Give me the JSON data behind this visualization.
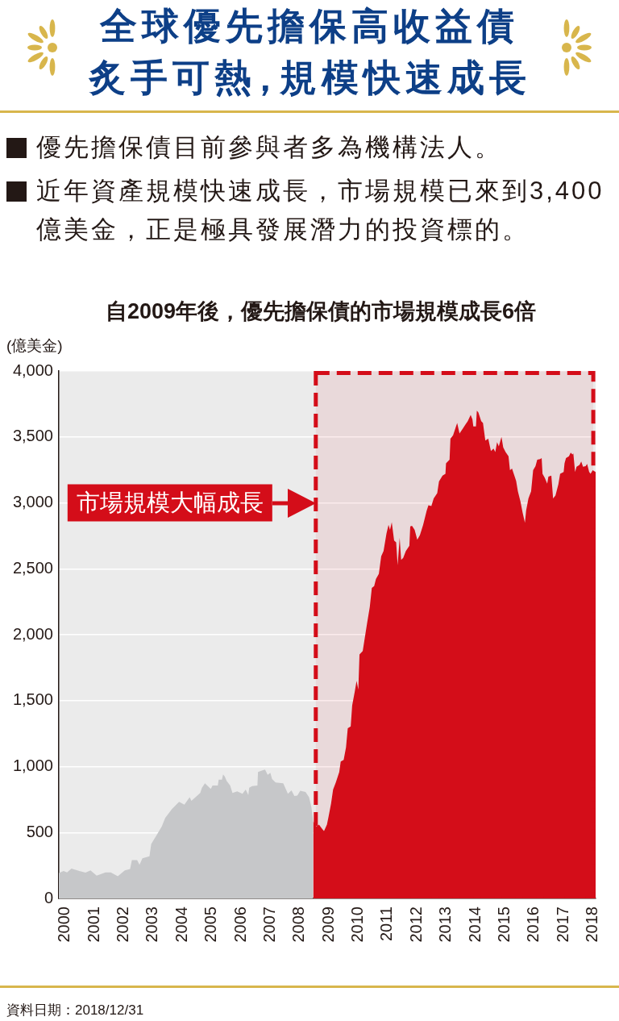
{
  "chart_data": {
    "type": "area",
    "title": "全球優先擔保高收益債炙手可熱，規模快速成長",
    "subtitle": "自2009年後，優先擔保債的市場規模成長6倍",
    "ylabel": "(億美金)",
    "annotations": [
      "優先擔保債目前參與者多為機構法人。",
      "近年資產規模快速成長，市場規模已來到3,400億美金，正是極具發展潛力的投資標的。",
      "資料日期：2018/12/31"
    ],
    "xlim": [
      1999.79,
      2018.09
    ],
    "xticks": [
      2000,
      2001,
      2002,
      2003,
      2004,
      2005,
      2006,
      2007,
      2008,
      2009,
      2010,
      2011,
      2012,
      2013,
      2014,
      2015,
      2016,
      2017,
      2018
    ],
    "ylim": [
      0,
      4000
    ],
    "yticks": [
      0,
      500,
      {
        "value": 1000,
        "label": "1,000"
      },
      {
        "value": 1500,
        "label": "1,500"
      },
      {
        "value": 2000,
        "label": "2,000"
      },
      {
        "value": 2500,
        "label": "2,500"
      },
      {
        "value": 3000,
        "label": "3,000"
      },
      {
        "value": 3500,
        "label": "3,500"
      },
      {
        "value": 4000,
        "label": "4,000"
      }
    ],
    "grid": "y",
    "bands": [
      {
        "axis": "x",
        "from": 2008.55,
        "to": 2018.01,
        "label": "市場規模大幅成長",
        "color": "#d40d19"
      }
    ],
    "series": [
      {
        "type": "area",
        "color": "#c6c7c9",
        "x": [
          1999.79,
          1999.95,
          2000.07,
          2000.22,
          2000.49,
          2000.7,
          2000.87,
          2001.08,
          2001.38,
          2001.56,
          2001.8,
          2002.04,
          2002.22,
          2002.28,
          2002.46,
          2002.54,
          2002.64,
          2002.88,
          2002.94,
          2003.12,
          2003.3,
          2003.42,
          2003.65,
          2003.89,
          2004.07,
          2004.25,
          2004.31,
          2004.61,
          2004.67,
          2004.77,
          2004.97,
          2005.03,
          2005.21,
          2005.24,
          2005.35,
          2005.39,
          2005.45,
          2005.51,
          2005.63,
          2005.71,
          2005.87,
          2006.05,
          2006.16,
          2006.25,
          2006.28,
          2006.38,
          2006.56,
          2006.58,
          2006.73,
          2006.82,
          2006.91,
          2007.0,
          2007.06,
          2007.18,
          2007.44,
          2007.6,
          2007.72,
          2007.82,
          2007.92,
          2008.02,
          2008.2,
          2008.32,
          2008.4,
          2008.46
        ],
        "values": [
          192,
          208,
          197,
          226,
          208,
          195,
          213,
          173,
          197,
          197,
          168,
          213,
          224,
          290,
          290,
          256,
          304,
          319,
          413,
          479,
          546,
          612,
          679,
          732,
          711,
          767,
          740,
          799,
          839,
          873,
          831,
          857,
          857,
          900,
          900,
          940,
          924,
          892,
          857,
          799,
          812,
          793,
          825,
          785,
          839,
          852,
          857,
          958,
          971,
          977,
          937,
          953,
          905,
          879,
          873,
          793,
          820,
          777,
          780,
          817,
          807,
          767,
          692,
          586
        ]
      },
      {
        "type": "area",
        "color": "#d40d19",
        "x": [
          2008.46,
          2008.57,
          2008.66,
          2008.75,
          2008.83,
          2008.93,
          2008.99,
          2009.07,
          2009.14,
          2009.23,
          2009.35,
          2009.4,
          2009.5,
          2009.58,
          2009.64,
          2009.74,
          2009.79,
          2009.88,
          2009.94,
          2010.0,
          2010.04,
          2010.15,
          2010.22,
          2010.3,
          2010.39,
          2010.46,
          2010.54,
          2010.6,
          2010.7,
          2010.78,
          2010.86,
          2010.96,
          2011.03,
          2011.08,
          2011.14,
          2011.22,
          2011.29,
          2011.34,
          2011.41,
          2011.46,
          2011.53,
          2011.62,
          2011.74,
          2011.77,
          2011.83,
          2011.92,
          2012.01,
          2012.1,
          2012.21,
          2012.33,
          2012.39,
          2012.49,
          2012.57,
          2012.69,
          2012.75,
          2012.87,
          2012.97,
          2012.99,
          2013.11,
          2013.14,
          2013.23,
          2013.33,
          2013.37,
          2013.45,
          2013.57,
          2013.65,
          2013.73,
          2013.83,
          2013.89,
          2013.92,
          2014.01,
          2014.04,
          2014.09,
          2014.19,
          2014.25,
          2014.33,
          2014.43,
          2014.52,
          2014.61,
          2014.67,
          2014.73,
          2014.79,
          2014.88,
          2014.94,
          2015.02,
          2015.12,
          2015.17,
          2015.24,
          2015.32,
          2015.38,
          2015.44,
          2015.53,
          2015.6,
          2015.68,
          2015.72,
          2015.8,
          2015.89,
          2015.96,
          2016.04,
          2016.1,
          2016.2,
          2016.25,
          2016.28,
          2016.36,
          2016.44,
          2016.48,
          2016.58,
          2016.64,
          2016.72,
          2016.82,
          2016.88,
          2017.0,
          2017.03,
          2017.08,
          2017.18,
          2017.24,
          2017.3,
          2017.33,
          2017.39,
          2017.44,
          2017.54,
          2017.6,
          2017.66,
          2017.75,
          2017.8,
          2017.87,
          2017.92,
          2017.99,
          2018.09
        ],
        "values": [
          586,
          546,
          559,
          532,
          511,
          559,
          626,
          719,
          825,
          878,
          958,
          1038,
          1051,
          1145,
          1291,
          1304,
          1464,
          1570,
          1650,
          1584,
          1850,
          1876,
          1975,
          2089,
          2209,
          2355,
          2369,
          2422,
          2462,
          2595,
          2635,
          2768,
          2834,
          2795,
          2853,
          2714,
          2701,
          2528,
          2736,
          2568,
          2582,
          2635,
          2675,
          2821,
          2826,
          2795,
          2720,
          2755,
          2834,
          2941,
          2981,
          2975,
          3034,
          3074,
          3162,
          3207,
          3220,
          3300,
          3327,
          3486,
          3513,
          3580,
          3606,
          3526,
          3566,
          3593,
          3619,
          3667,
          3633,
          3580,
          3580,
          3699,
          3686,
          3619,
          3606,
          3473,
          3486,
          3393,
          3412,
          3385,
          3460,
          3428,
          3500,
          3420,
          3385,
          3353,
          3247,
          3260,
          3207,
          3167,
          3087,
          3007,
          2927,
          2848,
          2941,
          3034,
          3087,
          3247,
          3279,
          3327,
          3332,
          3340,
          3220,
          3188,
          3146,
          3199,
          3207,
          3034,
          3055,
          3140,
          3220,
          3234,
          3300,
          3340,
          3353,
          3380,
          3367,
          3375,
          3234,
          3273,
          3287,
          3313,
          3273,
          3279,
          3295,
          3234,
          3220,
          3247,
          3234
        ]
      }
    ]
  }
}
